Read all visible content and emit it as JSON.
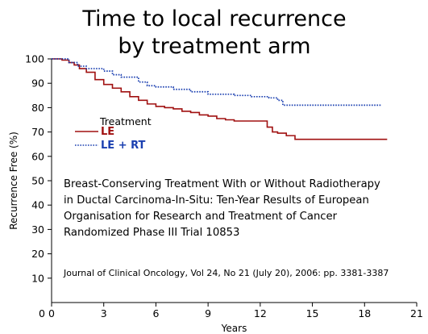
{
  "chart_data": {
    "type": "line",
    "title_lines": [
      "Time to local recurrence",
      "by treatment arm"
    ],
    "xlabel": "Years",
    "ylabel": "Recurrence Free (%)",
    "xlim": [
      0,
      21
    ],
    "ylim": [
      0,
      100
    ],
    "x_ticks": [
      0,
      3,
      6,
      9,
      12,
      15,
      18,
      21
    ],
    "y_ticks": [
      10,
      20,
      30,
      40,
      50,
      60,
      70,
      80,
      90,
      100
    ],
    "grid": false,
    "legend": {
      "title": "Treatment",
      "placement": "upper-left"
    },
    "series": [
      {
        "name": "LE",
        "color": "#a01010",
        "style": "solid",
        "points": [
          [
            0,
            100
          ],
          [
            0.6,
            99.5
          ],
          [
            1.0,
            98.5
          ],
          [
            1.3,
            97.5
          ],
          [
            1.6,
            96.0
          ],
          [
            2.0,
            94.5
          ],
          [
            2.5,
            91.5
          ],
          [
            3.0,
            89.5
          ],
          [
            3.5,
            88.0
          ],
          [
            4.0,
            86.5
          ],
          [
            4.5,
            84.5
          ],
          [
            5.0,
            83.0
          ],
          [
            5.5,
            81.5
          ],
          [
            6.0,
            80.5
          ],
          [
            6.5,
            80.0
          ],
          [
            7.0,
            79.5
          ],
          [
            7.5,
            78.5
          ],
          [
            8.0,
            78.0
          ],
          [
            8.5,
            77.0
          ],
          [
            9.0,
            76.5
          ],
          [
            9.5,
            75.5
          ],
          [
            10.0,
            75.0
          ],
          [
            10.5,
            74.5
          ],
          [
            12.1,
            74.5
          ],
          [
            12.4,
            72.0
          ],
          [
            12.7,
            70.0
          ],
          [
            13.0,
            69.5
          ],
          [
            13.5,
            68.5
          ],
          [
            14.0,
            67.0
          ],
          [
            19.3,
            67.0
          ]
        ]
      },
      {
        "name": "LE + RT",
        "color": "#1a3fb0",
        "style": "dotted",
        "points": [
          [
            0,
            100
          ],
          [
            1.0,
            98.5
          ],
          [
            1.5,
            97.0
          ],
          [
            2.0,
            96.0
          ],
          [
            3.0,
            95.0
          ],
          [
            3.5,
            93.5
          ],
          [
            4.0,
            92.5
          ],
          [
            5.0,
            90.5
          ],
          [
            5.5,
            89.0
          ],
          [
            6.0,
            88.5
          ],
          [
            7.0,
            87.5
          ],
          [
            8.0,
            86.5
          ],
          [
            9.0,
            85.5
          ],
          [
            10.5,
            85.0
          ],
          [
            11.5,
            84.5
          ],
          [
            12.5,
            84.0
          ],
          [
            13.0,
            83.0
          ],
          [
            13.3,
            81.0
          ],
          [
            19.0,
            81.0
          ]
        ]
      }
    ],
    "annotation_lines": [
      "Breast-Conserving Treatment With or Without Radiotherapy",
      "in Ductal Carcinoma-In-Situ: Ten-Year Results of European",
      "Organisation for Research and Treatment of Cancer",
      "Randomized  Phase III Trial 10853"
    ],
    "citation": "Journal of Clinical Oncology, Vol 24, No 21 (July 20), 2006: pp. 3381-3387"
  }
}
